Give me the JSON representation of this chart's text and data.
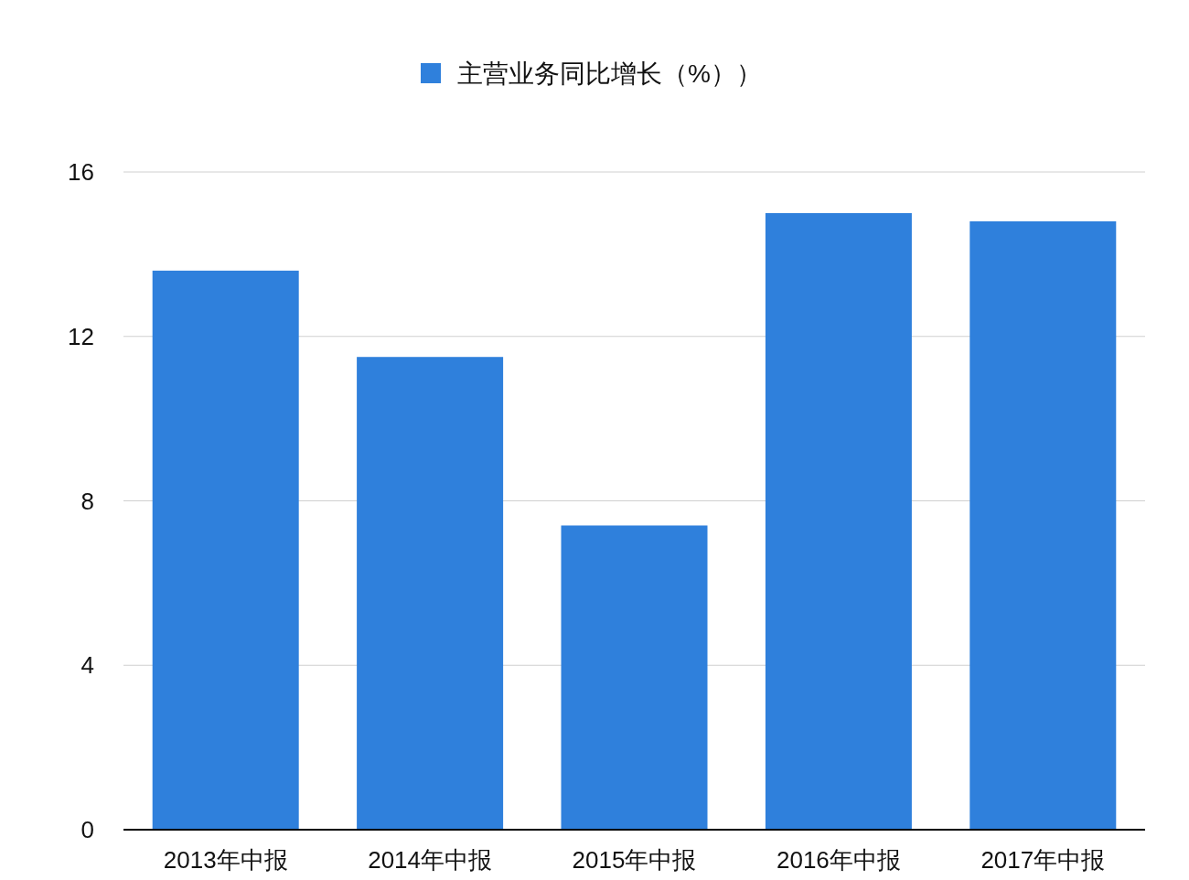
{
  "chart_data": {
    "type": "bar",
    "categories": [
      "2013年中报",
      "2014年中报",
      "2015年中报",
      "2016年中报",
      "2017年中报"
    ],
    "series": [
      {
        "name": "主营业务同比增长（%））",
        "color": "#2f80dc",
        "values": [
          13.6,
          11.5,
          7.4,
          15.0,
          14.8
        ]
      }
    ],
    "ylim": [
      0,
      16
    ],
    "yticks": [
      0,
      4,
      8,
      12,
      16
    ],
    "grid": "y",
    "legend": "top"
  }
}
